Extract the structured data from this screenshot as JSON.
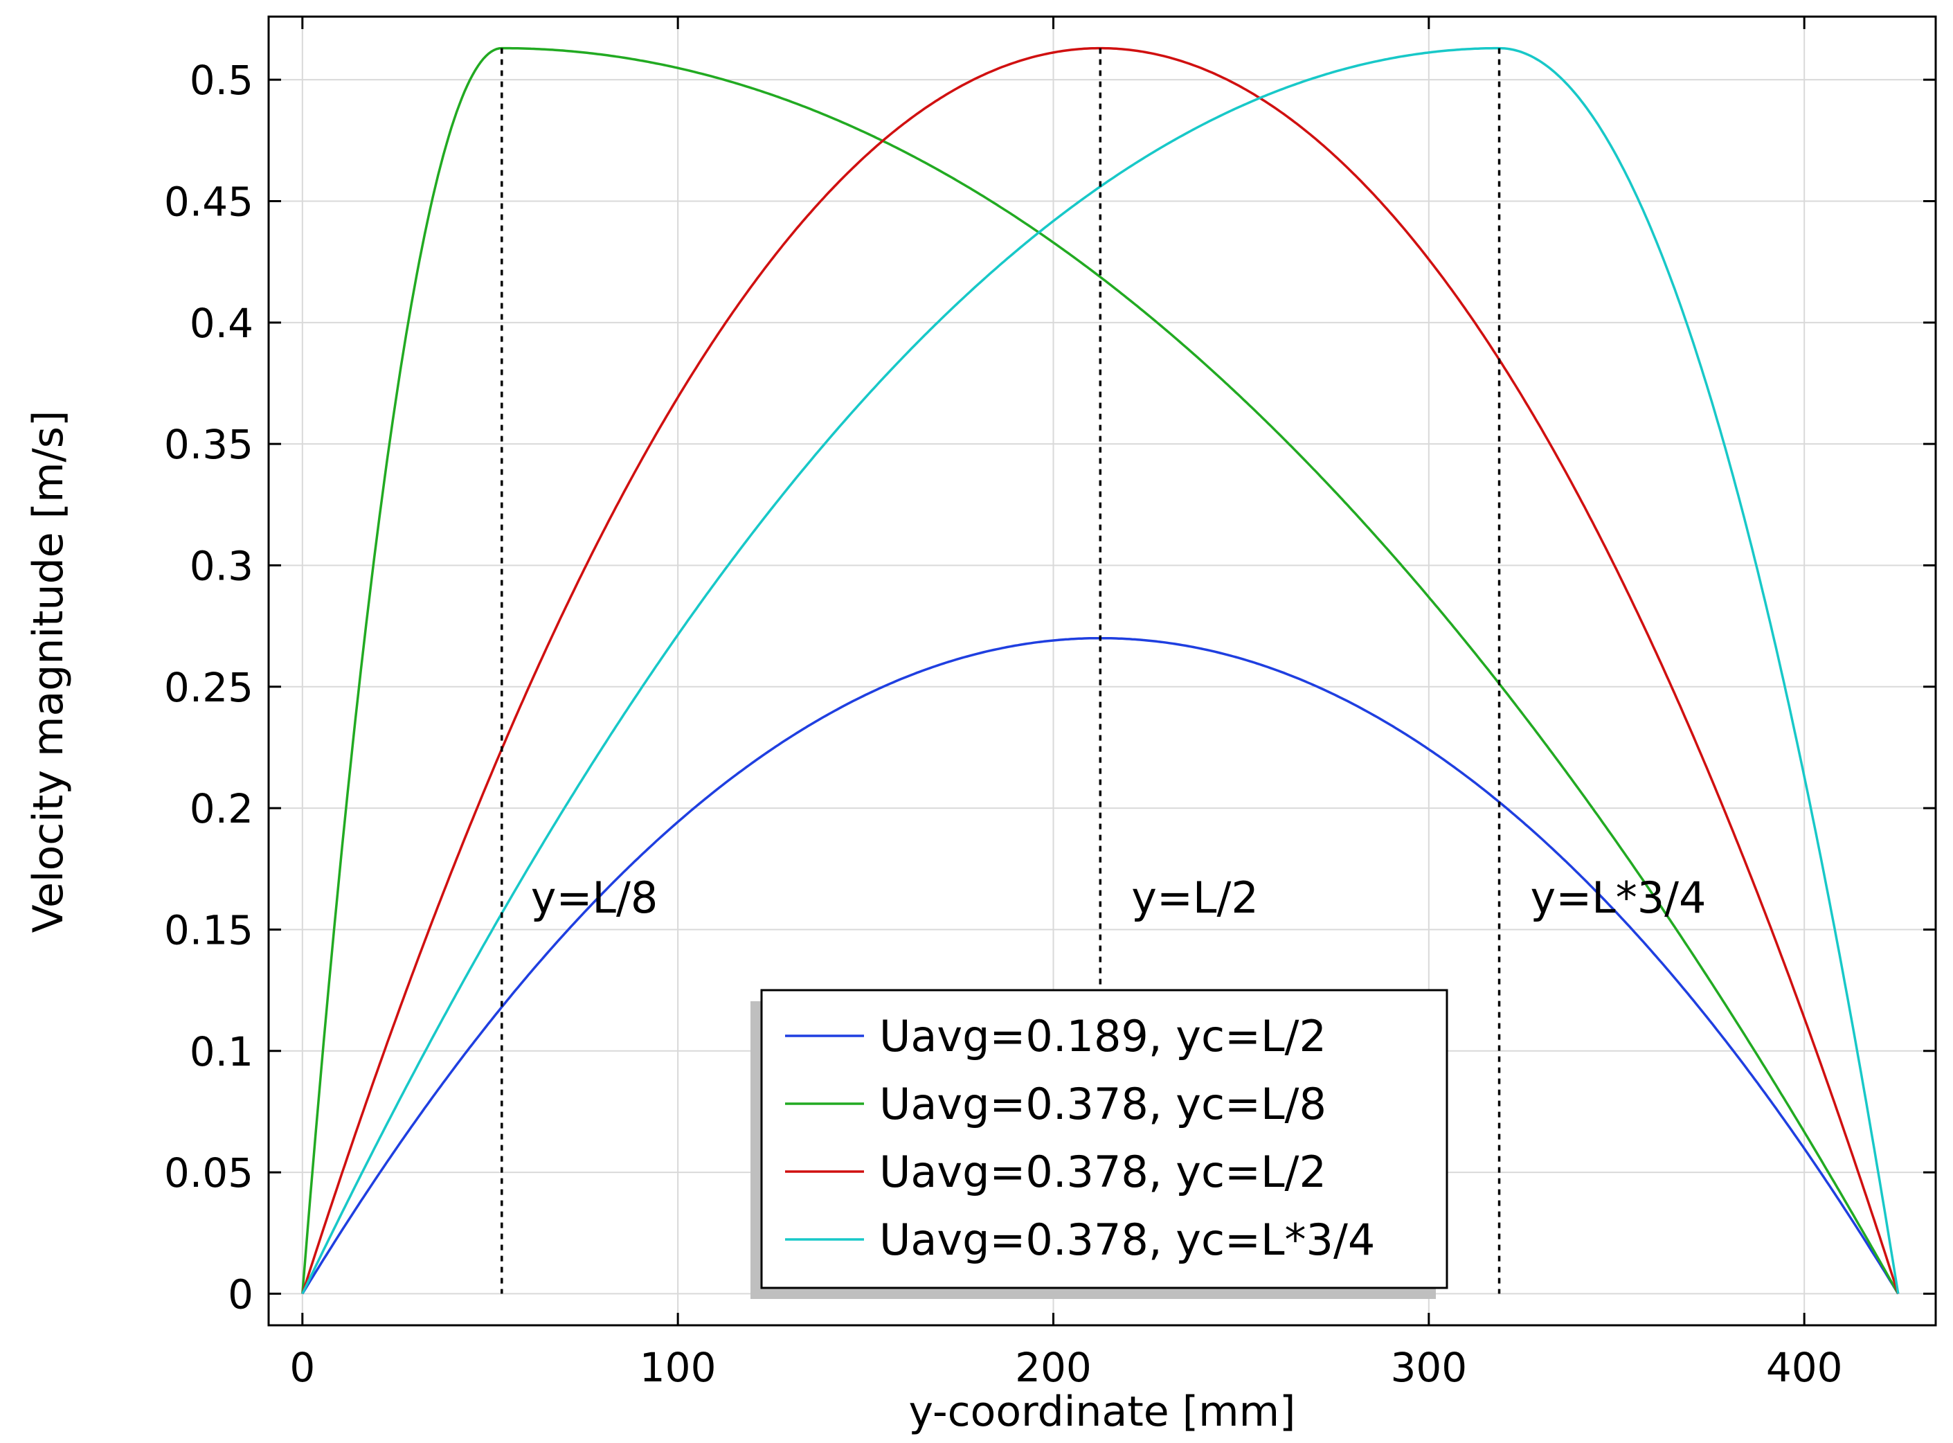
{
  "chart_data": {
    "type": "line",
    "title": "",
    "xlabel": "y-coordinate [mm]",
    "ylabel": "Velocity magnitude [m/s]",
    "xlim": [
      -9,
      435
    ],
    "ylim": [
      -0.013,
      0.526
    ],
    "grid": true,
    "xticks": [
      0,
      100,
      200,
      300,
      400
    ],
    "xtick_labels": [
      "0",
      "100",
      "200",
      "300",
      "400"
    ],
    "yticks": [
      0,
      0.05,
      0.1,
      0.15,
      0.2,
      0.25,
      0.3,
      0.35,
      0.4,
      0.45,
      0.5
    ],
    "ytick_labels": [
      "0",
      "0.05",
      "0.1",
      "0.15",
      "0.2",
      "0.25",
      "0.3",
      "0.35",
      "0.4",
      "0.45",
      "0.5"
    ],
    "channel_length_mm": 425,
    "series": [
      {
        "name": "Uavg=0.189, yc=L/2",
        "color": "#1f3fe0",
        "peak_y_mm": 212.5,
        "peak_value": 0.27
      },
      {
        "name": "Uavg=0.378, yc=L/8",
        "color": "#22aa22",
        "peak_y_mm": 53.1,
        "peak_value": 0.513
      },
      {
        "name": "Uavg=0.378, yc=L/2",
        "color": "#d01010",
        "peak_y_mm": 212.5,
        "peak_value": 0.513
      },
      {
        "name": "Uavg=0.378, yc=L*3/4",
        "color": "#18c8c8",
        "peak_y_mm": 318.75,
        "peak_value": 0.513
      }
    ],
    "reference_lines": [
      {
        "x": 53.1,
        "label": "y=L/8"
      },
      {
        "x": 212.5,
        "label": "y=L/2"
      },
      {
        "x": 318.75,
        "label": "y=L*3/4"
      }
    ],
    "legend_position": "bottom-center"
  }
}
